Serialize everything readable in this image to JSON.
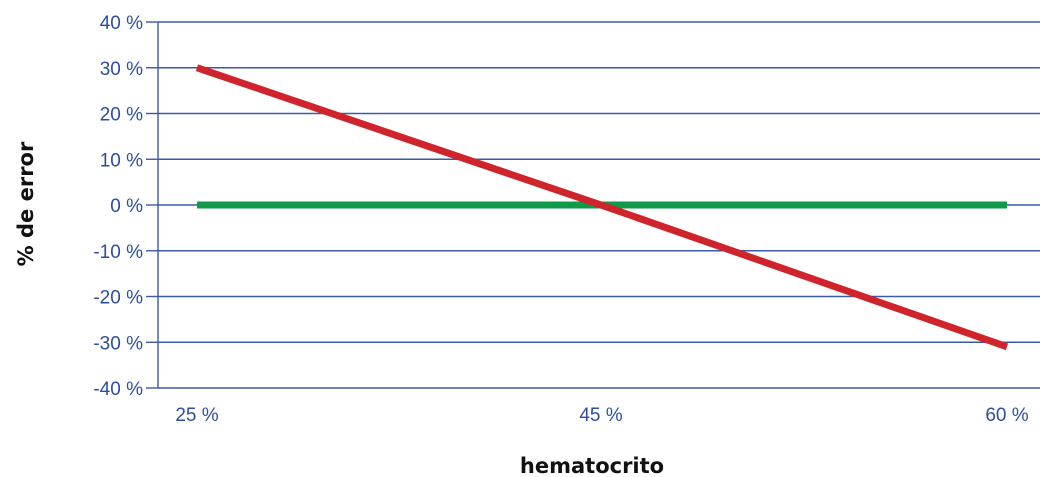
{
  "chart_data": {
    "type": "line",
    "title": "",
    "xlabel": "hematocrito",
    "ylabel": "% de error",
    "categories": [
      "25 %",
      "45 %",
      "60 %"
    ],
    "yticks": [
      "40 %",
      "30 %",
      "20 %",
      "10 %",
      "0 %",
      "-10 %",
      "-20 %",
      "-30 %",
      "-40 %"
    ],
    "ylim": [
      -40,
      40
    ],
    "grid": true,
    "legend": "none",
    "series": [
      {
        "values": [
          0,
          0,
          0
        ],
        "color": "#0f9a4a"
      },
      {
        "values": [
          30,
          0,
          -31
        ],
        "color": "#d0242d"
      }
    ],
    "colors": {
      "axis": "#3a5aa8",
      "grid": "#3a5aa8",
      "tick_text": "#2b4f9e"
    }
  }
}
